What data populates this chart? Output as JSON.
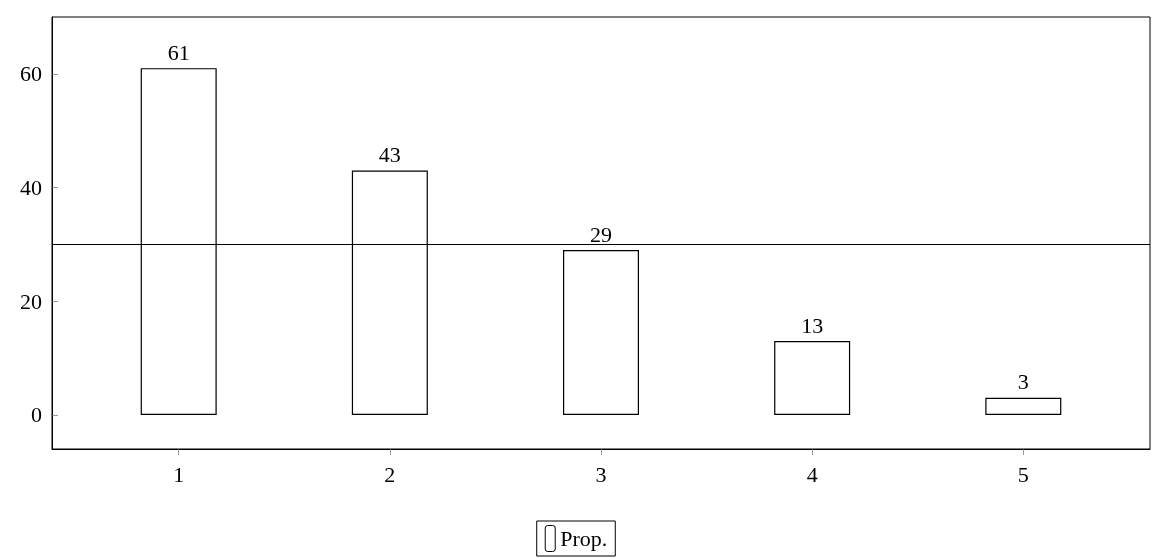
{
  "chart_data": {
    "type": "bar",
    "x": [
      1,
      2,
      3,
      4,
      5
    ],
    "series": [
      {
        "name": "Prop.",
        "color": "#ffffff",
        "values": [
          61,
          43,
          29,
          13,
          3
        ]
      }
    ],
    "xlim": [
      0.4,
      5.6
    ],
    "xticks": [
      1,
      2,
      3,
      4,
      5
    ],
    "ylim": [
      -6,
      70
    ],
    "yticks": [
      0,
      20,
      40,
      60
    ],
    "ref_lines": [
      {
        "axis": "y",
        "value": 30,
        "color": "#000000"
      }
    ],
    "data_labels": true,
    "grid": false,
    "legend": "bottom"
  }
}
